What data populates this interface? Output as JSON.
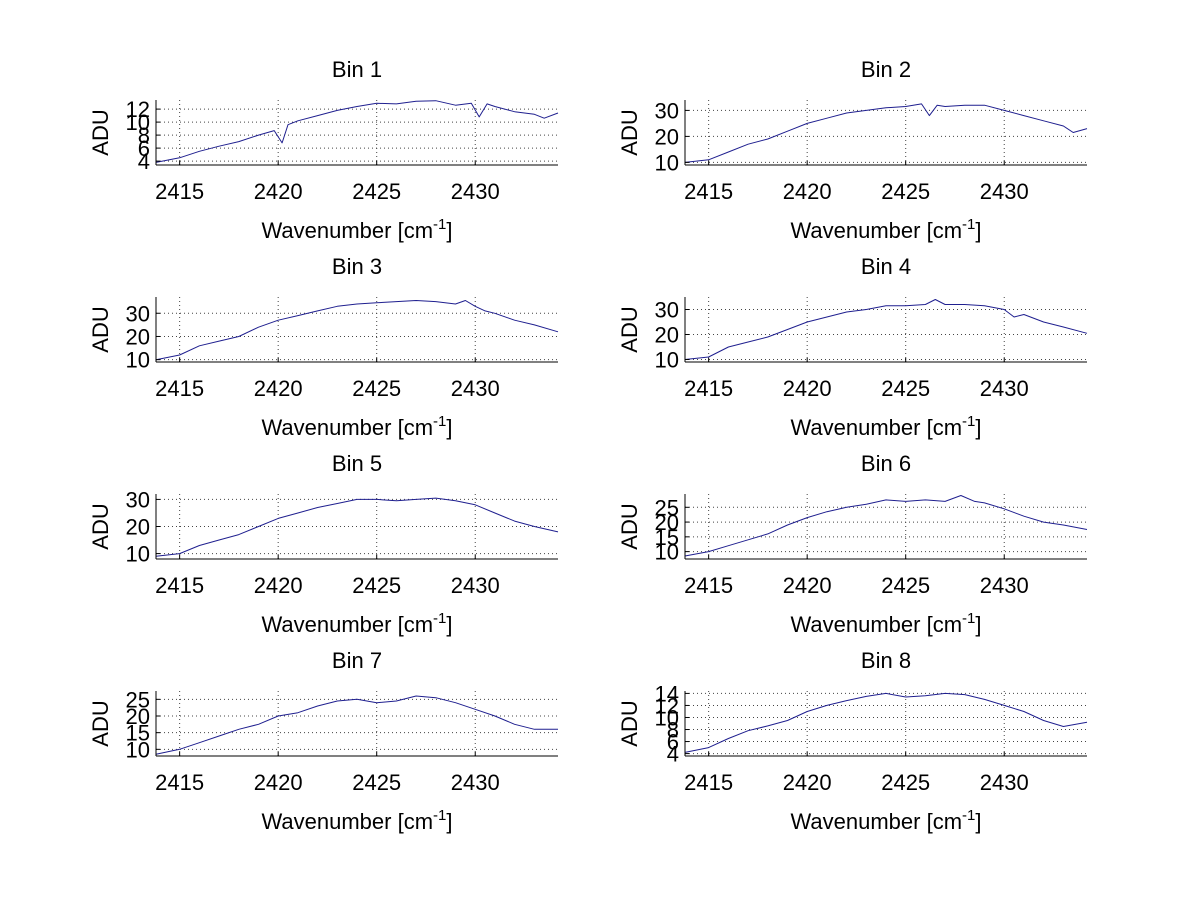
{
  "chart_data": [
    {
      "type": "line",
      "title": "Bin 1",
      "xlabel": "Wavenumber [cm",
      "xlabel_sup": "-1",
      "xlabel_end": "]",
      "ylabel": "ADU",
      "xlim": [
        2413.8,
        2434.2
      ],
      "ylim": [
        3.4,
        13.4
      ],
      "xticks": [
        2415,
        2420,
        2425,
        2430
      ],
      "yticks": [
        4,
        6,
        8,
        10,
        12
      ],
      "series": [
        {
          "name": "Bin 1",
          "color": "#1f1f8f",
          "x": [
            2413.8,
            2415,
            2416,
            2417,
            2418,
            2419,
            2419.8,
            2420.2,
            2420.5,
            2421,
            2422,
            2423,
            2424,
            2425,
            2426,
            2427,
            2428,
            2429,
            2429.8,
            2430.2,
            2430.6,
            2431,
            2432,
            2433,
            2433.5,
            2434.2
          ],
          "y": [
            3.8,
            4.5,
            5.5,
            6.3,
            7.0,
            8.0,
            8.7,
            6.8,
            9.6,
            10.2,
            11.0,
            11.8,
            12.4,
            12.9,
            12.8,
            13.2,
            13.3,
            12.6,
            12.9,
            10.8,
            12.8,
            12.4,
            11.6,
            11.2,
            10.6,
            11.4
          ]
        }
      ]
    },
    {
      "type": "line",
      "title": "Bin 2",
      "xlabel": "Wavenumber [cm",
      "xlabel_sup": "-1",
      "xlabel_end": "]",
      "ylabel": "ADU",
      "xlim": [
        2413.8,
        2434.2
      ],
      "ylim": [
        9,
        34
      ],
      "xticks": [
        2415,
        2420,
        2425,
        2430
      ],
      "yticks": [
        10,
        20,
        30
      ],
      "series": [
        {
          "name": "Bin 2",
          "color": "#1f1f8f",
          "x": [
            2413.8,
            2415,
            2416,
            2417,
            2418,
            2419,
            2420,
            2421,
            2422,
            2423,
            2424,
            2425,
            2425.8,
            2426.2,
            2426.6,
            2427,
            2428,
            2429,
            2430,
            2431,
            2432,
            2433,
            2433.5,
            2434.2
          ],
          "y": [
            10,
            11,
            14,
            17,
            19,
            22,
            25,
            27,
            29,
            30,
            31,
            31.5,
            32.5,
            28,
            32,
            31.5,
            32,
            32,
            30,
            28,
            26,
            24,
            21.5,
            23
          ]
        }
      ]
    },
    {
      "type": "line",
      "title": "Bin 3",
      "xlabel": "Wavenumber [cm",
      "xlabel_sup": "-1",
      "xlabel_end": "]",
      "ylabel": "ADU",
      "xlim": [
        2413.8,
        2434.2
      ],
      "ylim": [
        9,
        37
      ],
      "xticks": [
        2415,
        2420,
        2425,
        2430
      ],
      "yticks": [
        10,
        20,
        30
      ],
      "series": [
        {
          "name": "Bin 3",
          "color": "#1f1f8f",
          "x": [
            2413.8,
            2415,
            2416,
            2417,
            2418,
            2419,
            2420,
            2421,
            2422,
            2423,
            2424,
            2425,
            2426,
            2427,
            2428,
            2429,
            2429.5,
            2430,
            2430.5,
            2431,
            2432,
            2433,
            2434.2
          ],
          "y": [
            10,
            12,
            16,
            18,
            20,
            24,
            27,
            29,
            31,
            33,
            34,
            34.5,
            35,
            35.5,
            35,
            34,
            35.5,
            33,
            31,
            30,
            27,
            25,
            22
          ]
        }
      ]
    },
    {
      "type": "line",
      "title": "Bin 4",
      "xlabel": "Wavenumber [cm",
      "xlabel_sup": "-1",
      "xlabel_end": "]",
      "ylabel": "ADU",
      "xlim": [
        2413.8,
        2434.2
      ],
      "ylim": [
        9,
        35
      ],
      "xticks": [
        2415,
        2420,
        2425,
        2430
      ],
      "yticks": [
        10,
        20,
        30
      ],
      "series": [
        {
          "name": "Bin 4",
          "color": "#1f1f8f",
          "x": [
            2413.8,
            2415,
            2416,
            2417,
            2418,
            2419,
            2420,
            2421,
            2422,
            2423,
            2424,
            2425,
            2426,
            2426.5,
            2427,
            2428,
            2429,
            2430,
            2430.5,
            2431,
            2432,
            2433,
            2434.2
          ],
          "y": [
            10,
            11,
            15,
            17,
            19,
            22,
            25,
            27,
            29,
            30,
            31.5,
            31.5,
            32,
            34,
            32,
            32,
            31.5,
            30,
            27,
            28,
            25,
            23,
            20.5
          ]
        }
      ]
    },
    {
      "type": "line",
      "title": "Bin 5",
      "xlabel": "Wavenumber [cm",
      "xlabel_sup": "-1",
      "xlabel_end": "]",
      "ylabel": "ADU",
      "xlim": [
        2413.8,
        2434.2
      ],
      "ylim": [
        8,
        32
      ],
      "xticks": [
        2415,
        2420,
        2425,
        2430
      ],
      "yticks": [
        10,
        20,
        30
      ],
      "series": [
        {
          "name": "Bin 5",
          "color": "#1f1f8f",
          "x": [
            2413.8,
            2415,
            2416,
            2417,
            2418,
            2419,
            2420,
            2421,
            2422,
            2423,
            2424,
            2425,
            2426,
            2427,
            2428,
            2429,
            2430,
            2431,
            2432,
            2433,
            2434.2
          ],
          "y": [
            9,
            10,
            13,
            15,
            17,
            20,
            23,
            25,
            27,
            28.5,
            30,
            30,
            29.5,
            30,
            30.5,
            29.5,
            28,
            25,
            22,
            20,
            18
          ]
        }
      ]
    },
    {
      "type": "line",
      "title": "Bin 6",
      "xlabel": "Wavenumber [cm",
      "xlabel_sup": "-1",
      "xlabel_end": "]",
      "ylabel": "ADU",
      "xlim": [
        2413.8,
        2434.2
      ],
      "ylim": [
        7.5,
        29.5
      ],
      "xticks": [
        2415,
        2420,
        2425,
        2430
      ],
      "yticks": [
        10,
        15,
        20,
        25
      ],
      "series": [
        {
          "name": "Bin 6",
          "color": "#1f1f8f",
          "x": [
            2413.8,
            2415,
            2416,
            2417,
            2418,
            2419,
            2420,
            2421,
            2422,
            2423,
            2424,
            2425,
            2426,
            2427,
            2427.8,
            2428.5,
            2429,
            2430,
            2431,
            2432,
            2433,
            2434.2
          ],
          "y": [
            8.5,
            10,
            12,
            14,
            16,
            19,
            21.5,
            23.5,
            25,
            26,
            27.5,
            27,
            27.5,
            27,
            29,
            27,
            26.5,
            24.5,
            22,
            20,
            19,
            17.5
          ]
        }
      ]
    },
    {
      "type": "line",
      "title": "Bin 7",
      "xlabel": "Wavenumber [cm",
      "xlabel_sup": "-1",
      "xlabel_end": "]",
      "ylabel": "ADU",
      "xlim": [
        2413.8,
        2434.2
      ],
      "ylim": [
        8,
        27.5
      ],
      "xticks": [
        2415,
        2420,
        2425,
        2430
      ],
      "yticks": [
        10,
        15,
        20,
        25
      ],
      "series": [
        {
          "name": "Bin 7",
          "color": "#1f1f8f",
          "x": [
            2413.8,
            2415,
            2416,
            2417,
            2418,
            2419,
            2420,
            2421,
            2422,
            2423,
            2424,
            2425,
            2426,
            2427,
            2428,
            2429,
            2430,
            2431,
            2432,
            2433,
            2434.2
          ],
          "y": [
            8.5,
            10,
            12,
            14,
            16,
            17.5,
            20,
            21,
            23,
            24.5,
            25,
            24,
            24.5,
            26,
            25.5,
            24,
            22,
            20,
            17.5,
            16,
            16
          ]
        }
      ]
    },
    {
      "type": "line",
      "title": "Bin 8",
      "xlabel": "Wavenumber [cm",
      "xlabel_sup": "-1",
      "xlabel_end": "]",
      "ylabel": "ADU",
      "xlim": [
        2413.8,
        2434.2
      ],
      "ylim": [
        3.6,
        14.4
      ],
      "xticks": [
        2415,
        2420,
        2425,
        2430
      ],
      "yticks": [
        4,
        6,
        8,
        10,
        12,
        14
      ],
      "series": [
        {
          "name": "Bin 8",
          "color": "#1f1f8f",
          "x": [
            2413.8,
            2415,
            2416,
            2417,
            2418,
            2419,
            2420,
            2421,
            2422,
            2423,
            2424,
            2425,
            2426,
            2427,
            2428,
            2429,
            2430,
            2431,
            2432,
            2433,
            2434.2
          ],
          "y": [
            4.2,
            5,
            6.5,
            7.8,
            8.6,
            9.5,
            11,
            12,
            12.8,
            13.5,
            14,
            13.4,
            13.6,
            14,
            13.8,
            13,
            12,
            11,
            9.5,
            8.5,
            9.2
          ]
        }
      ]
    }
  ]
}
